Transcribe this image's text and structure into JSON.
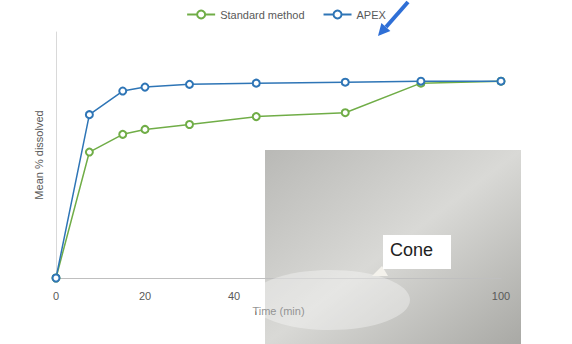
{
  "chart_data": {
    "type": "line",
    "x_label": "Time (min)",
    "y_label": "Mean % dissolved",
    "series": [
      {
        "name": "Standard method",
        "color": "#70ad47",
        "x": [
          0,
          7.5,
          15,
          20,
          30,
          45,
          65,
          82,
          100
        ],
        "values": [
          0,
          64,
          73,
          75.5,
          78,
          82,
          84,
          99,
          100
        ]
      },
      {
        "name": "APEX",
        "color": "#2e75b6",
        "x": [
          0,
          7.5,
          15,
          20,
          30,
          45,
          65,
          82,
          100
        ],
        "values": [
          0,
          83,
          95,
          97,
          98.4,
          99,
          99.5,
          100,
          100
        ]
      }
    ],
    "xlim": [
      0,
      100
    ],
    "xticks": [
      0,
      20,
      40,
      100
    ],
    "ylim": [
      0,
      125
    ],
    "yticks": [],
    "tick_labels": "x",
    "grid": false,
    "legend": "top",
    "marker": "circle",
    "annotations": [
      {
        "text": "Cone"
      }
    ]
  }
}
